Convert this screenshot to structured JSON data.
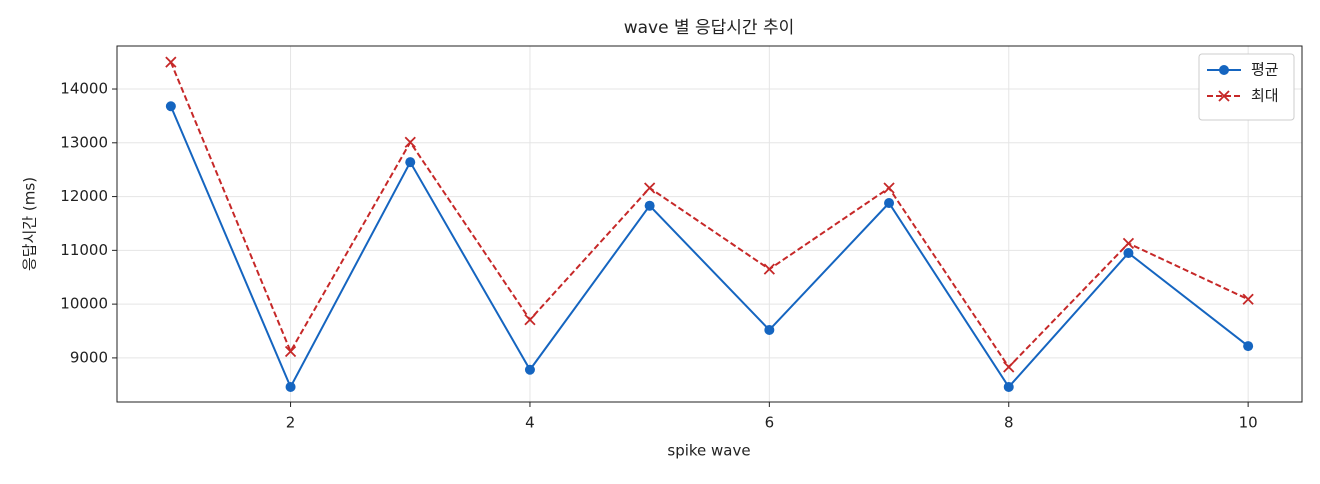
{
  "chart_data": {
    "type": "line",
    "title": "wave 별 응답시간 추이",
    "xlabel": "spike wave",
    "ylabel": "응답시간 (ms)",
    "x": [
      1,
      2,
      3,
      4,
      5,
      6,
      7,
      8,
      9,
      10
    ],
    "series": [
      {
        "name": "평균",
        "color": "#1565c0",
        "marker": "circle",
        "linestyle": "solid",
        "values": [
          13680,
          8460,
          12640,
          8780,
          11830,
          9520,
          11880,
          8460,
          10950,
          9220
        ]
      },
      {
        "name": "최대",
        "color": "#c62828",
        "marker": "x",
        "linestyle": "dashed",
        "values": [
          14500,
          9120,
          13010,
          9710,
          12160,
          10650,
          12160,
          8830,
          11130,
          10090
        ]
      }
    ],
    "xlim": [
      0.55,
      10.45
    ],
    "ylim": [
      8180,
      14800
    ],
    "xticks": [
      2,
      4,
      6,
      8,
      10
    ],
    "yticks": [
      9000,
      10000,
      11000,
      12000,
      13000,
      14000
    ],
    "grid": true,
    "legend": "upper right"
  }
}
